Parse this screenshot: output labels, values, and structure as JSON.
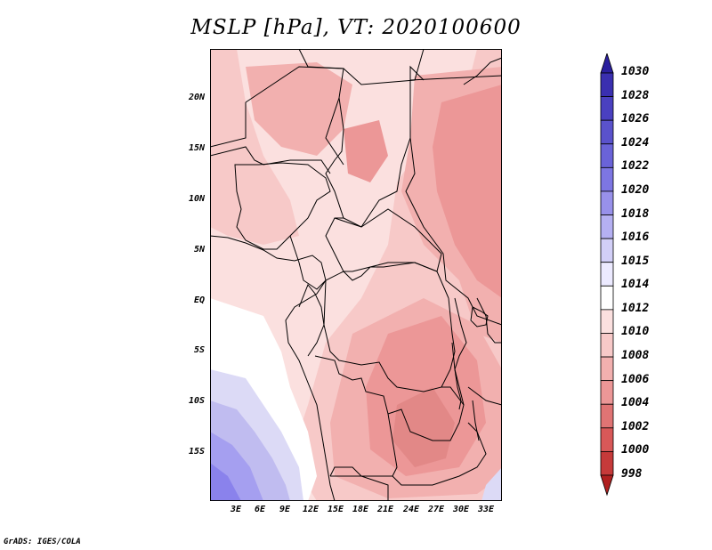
{
  "title": "MSLP [hPa], VT: 2020100600",
  "credit": "GrADS: IGES/COLA",
  "map": {
    "lat_labels": [
      "20N",
      "15N",
      "10N",
      "5N",
      "EQ",
      "5S",
      "10S",
      "15S"
    ],
    "lon_labels": [
      "3E",
      "6E",
      "9E",
      "12E",
      "15E",
      "18E",
      "21E",
      "24E",
      "27E",
      "30E",
      "33E"
    ],
    "colors": {
      "very_light_pink": "#fbe0df",
      "light_pink": "#f7c9c8",
      "pink": "#f2b0af",
      "salmon": "#ec9797",
      "deep_salmon": "#e28887",
      "white": "#ffffff",
      "pale_lavender": "#dcdaf6",
      "lavender": "#c0bcf0",
      "periwinkle": "#a59ff0",
      "blue_violet": "#8a82ec",
      "border": "#000000"
    }
  },
  "colorbar": {
    "labels": [
      "1030",
      "1028",
      "1026",
      "1024",
      "1022",
      "1020",
      "1018",
      "1016",
      "1015",
      "1014",
      "1012",
      "1010",
      "1008",
      "1006",
      "1004",
      "1002",
      "1000",
      "998"
    ],
    "colors": [
      "#2a1f9e",
      "#3a2fb0",
      "#4a40c0",
      "#5a52cc",
      "#6a63d8",
      "#7d76e2",
      "#9891ea",
      "#b5b0f2",
      "#d2cff7",
      "#eceaff",
      "#ffffff",
      "#fbe0df",
      "#f7c9c8",
      "#f2b0af",
      "#ec9797",
      "#e07474",
      "#d85858",
      "#c63a3a",
      "#b02020"
    ]
  }
}
